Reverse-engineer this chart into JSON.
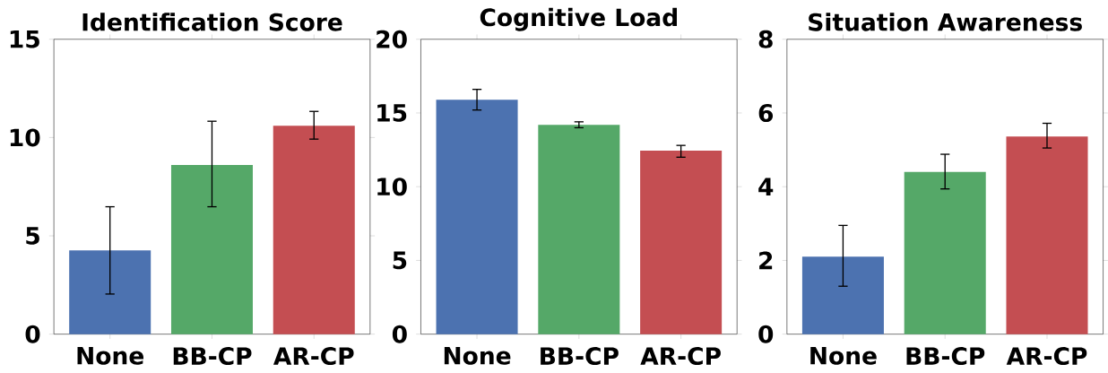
{
  "chart_data": [
    {
      "type": "bar",
      "title": "Identification Score",
      "categories": [
        "None",
        "BB-CP",
        "AR-CP"
      ],
      "values": [
        4.26,
        8.61,
        10.6
      ],
      "colors": [
        "#4c72b0",
        "#55a868",
        "#c44e52"
      ],
      "errors": [
        [
          2.04,
          6.48
        ],
        [
          6.48,
          10.83
        ],
        [
          9.92,
          11.33
        ]
      ],
      "ylim": [
        0,
        15
      ],
      "yticks": [
        0,
        5,
        10,
        15
      ]
    },
    {
      "type": "bar",
      "title": "Cognitive Load",
      "categories": [
        "None",
        "BB-CP",
        "AR-CP"
      ],
      "values": [
        15.9,
        14.2,
        12.45
      ],
      "colors": [
        "#4c72b0",
        "#55a868",
        "#c44e52"
      ],
      "errors": [
        [
          15.2,
          16.6
        ],
        [
          14.0,
          14.4
        ],
        [
          12.0,
          12.8
        ]
      ],
      "ylim": [
        0,
        20
      ],
      "yticks": [
        0,
        5,
        10,
        15,
        20
      ]
    },
    {
      "type": "bar",
      "title": "Situation Awareness",
      "categories": [
        "None",
        "BB-CP",
        "AR-CP"
      ],
      "values": [
        2.1,
        4.4,
        5.36
      ],
      "colors": [
        "#4c72b0",
        "#55a868",
        "#c44e52"
      ],
      "errors": [
        [
          1.3,
          2.95
        ],
        [
          3.94,
          4.88
        ],
        [
          5.05,
          5.72
        ]
      ],
      "ylim": [
        0,
        8
      ],
      "yticks": [
        0,
        2,
        4,
        6,
        8
      ]
    }
  ]
}
